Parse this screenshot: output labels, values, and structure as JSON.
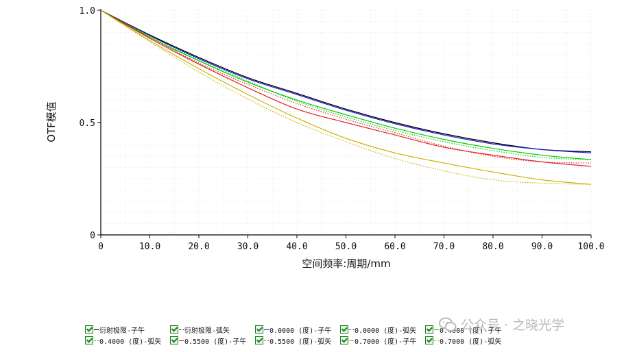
{
  "chart_data": {
    "type": "line",
    "xlabel": "空间频率:周期/mm",
    "ylabel": "OTF模值",
    "xlim": [
      0,
      100
    ],
    "ylim": [
      0,
      1
    ],
    "x_ticks": [
      "0",
      "10.0",
      "20.0",
      "30.0",
      "40.0",
      "50.0",
      "60.0",
      "70.0",
      "80.0",
      "90.0",
      "100.0"
    ],
    "y_ticks": [
      "0",
      "0.5",
      "1.0"
    ],
    "grid": true,
    "legend_placement": "bottom",
    "x": [
      0,
      10,
      20,
      30,
      40,
      50,
      60,
      70,
      80,
      90,
      100
    ],
    "series": [
      {
        "name": "衍射极限-子午",
        "color": "#000000",
        "dash": "solid",
        "values": [
          1.0,
          0.89,
          0.79,
          0.7,
          0.63,
          0.56,
          0.5,
          0.45,
          0.41,
          0.38,
          0.37
        ]
      },
      {
        "name": "衍射极限-弧矢",
        "color": "#000000",
        "dash": "dotted",
        "values": [
          1.0,
          0.89,
          0.79,
          0.7,
          0.63,
          0.56,
          0.5,
          0.45,
          0.41,
          0.38,
          0.37
        ]
      },
      {
        "name": "0.0000 (度)-子午",
        "color": "#1f1fd6",
        "dash": "solid",
        "values": [
          1.0,
          0.887,
          0.785,
          0.695,
          0.625,
          0.555,
          0.495,
          0.445,
          0.405,
          0.38,
          0.365
        ]
      },
      {
        "name": "0.0000 (度)-弧矢",
        "color": "#1f1fd6",
        "dash": "dotted",
        "values": [
          1.0,
          0.887,
          0.785,
          0.695,
          0.625,
          0.555,
          0.495,
          0.445,
          0.405,
          0.38,
          0.365
        ]
      },
      {
        "name": "0.4000 (度)-子午",
        "color": "#00cc00",
        "dash": "solid",
        "values": [
          1.0,
          0.88,
          0.775,
          0.68,
          0.6,
          0.535,
          0.475,
          0.425,
          0.385,
          0.355,
          0.335
        ]
      },
      {
        "name": "0.4000 (度)-弧矢",
        "color": "#00cc00",
        "dash": "dotted",
        "values": [
          1.0,
          0.885,
          0.78,
          0.685,
          0.595,
          0.525,
          0.465,
          0.415,
          0.375,
          0.345,
          0.335
        ]
      },
      {
        "name": "0.5500 (度)-子午",
        "color": "#e02020",
        "dash": "solid",
        "values": [
          1.0,
          0.875,
          0.76,
          0.655,
          0.56,
          0.5,
          0.445,
          0.39,
          0.355,
          0.325,
          0.305
        ]
      },
      {
        "name": "0.5500 (度)-弧矢",
        "color": "#e02020",
        "dash": "dotted",
        "values": [
          1.0,
          0.88,
          0.765,
          0.67,
          0.585,
          0.515,
          0.455,
          0.395,
          0.35,
          0.325,
          0.32
        ]
      },
      {
        "name": "0.7000 (度)-子午",
        "color": "#c8b400",
        "dash": "solid",
        "values": [
          1.0,
          0.865,
          0.74,
          0.625,
          0.52,
          0.43,
          0.365,
          0.32,
          0.28,
          0.245,
          0.225
        ]
      },
      {
        "name": "0.7000 (度)-弧矢",
        "color": "#c8b400",
        "dash": "dotted",
        "values": [
          1.0,
          0.86,
          0.725,
          0.605,
          0.5,
          0.415,
          0.34,
          0.285,
          0.245,
          0.23,
          0.225
        ]
      }
    ]
  },
  "legend_items": [
    "衍射极限-子午",
    "衍射极限-弧矢",
    "0.0000 (度)-子午",
    "0.0000 (度)-弧矢",
    "0.4000 (度)-子午",
    "0.4000 (度)-弧矢",
    "0.5500 (度)-子午",
    "0.5500 (度)-弧矢",
    "0.7000 (度)-子午",
    "0.7000 (度)-弧矢"
  ],
  "watermark": {
    "text": "公众号 · 之晓光学",
    "icon": "wechat-icon"
  }
}
